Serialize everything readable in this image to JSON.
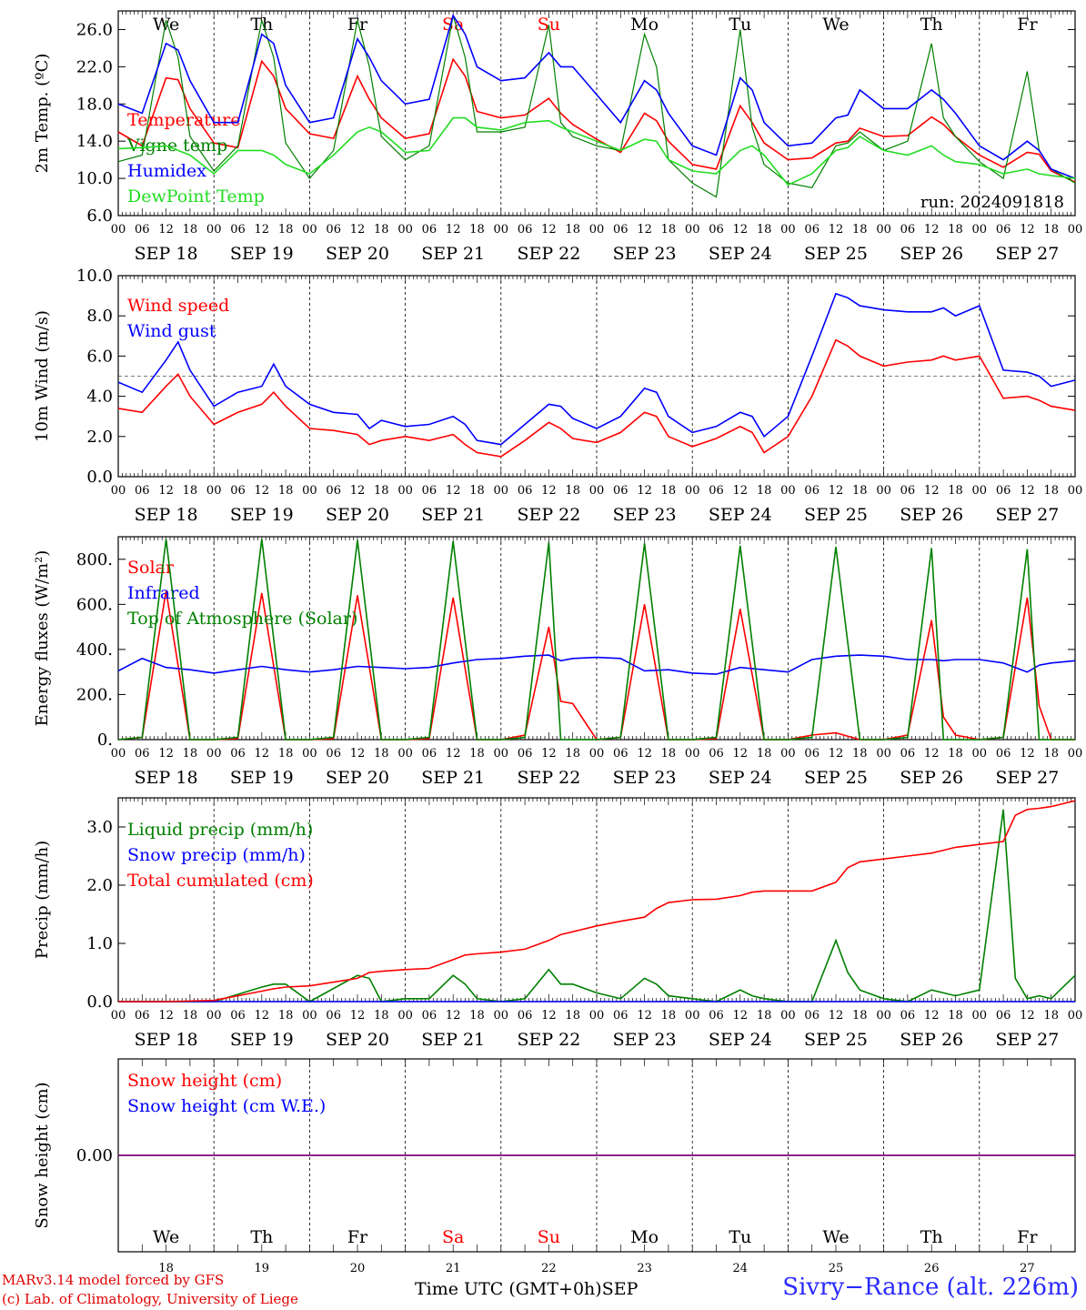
{
  "footer": {
    "credit_model": "MARv3.14 model forced by GFS",
    "credit_lab": "(c) Lab. of Climatology, University of Liege",
    "time_label": "Time UTC (GMT+0h)",
    "month_label": "SEP",
    "station": "Sivry−Rance (alt. 226m)"
  },
  "days": {
    "names": [
      "We",
      "Th",
      "Fr",
      "Sa",
      "Su",
      "Mo",
      "Tu",
      "We",
      "Th",
      "Fr"
    ],
    "weekend_flags": [
      false,
      false,
      false,
      true,
      true,
      false,
      false,
      false,
      false,
      false
    ],
    "dates": [
      "SEP 18",
      "SEP 19",
      "SEP 20",
      "SEP 21",
      "SEP 22",
      "SEP 23",
      "SEP 24",
      "SEP 25",
      "SEP 26",
      "SEP 27"
    ],
    "numbers": [
      "18",
      "19",
      "20",
      "21",
      "22",
      "23",
      "24",
      "25",
      "26",
      "27"
    ],
    "hour_ticks": [
      "00",
      "06",
      "12",
      "18"
    ],
    "last_tick": "00"
  },
  "colors": {
    "red": "#ff0000",
    "blue": "#0000ff",
    "green": "#008000",
    "lightgreen": "#22dd22",
    "purple": "#7f007f",
    "weekend": "#ff0000"
  },
  "chart_data": [
    {
      "type": "line",
      "ylabel": "2m Temp. (ºC)",
      "ylim": [
        6,
        28
      ],
      "yticks": [
        "6.0",
        "10.0",
        "14.0",
        "18.0",
        "22.0",
        "26.0"
      ],
      "run_label": "run: 2024091818",
      "x_hours": [
        0,
        6,
        12,
        15,
        18,
        24,
        30,
        36,
        39,
        42,
        48,
        54,
        60,
        63,
        66,
        72,
        78,
        84,
        87,
        90,
        96,
        102,
        108,
        111,
        114,
        120,
        126,
        132,
        135,
        138,
        144,
        150,
        156,
        159,
        162,
        168,
        174,
        180,
        183,
        186,
        192,
        198,
        204,
        207,
        210,
        216,
        222,
        228,
        231,
        234,
        240
      ],
      "series": [
        {
          "name": "Temperature",
          "color": "red",
          "values": [
            15.0,
            13.5,
            20.8,
            20.6,
            17.5,
            13.8,
            13.3,
            22.6,
            21.0,
            17.5,
            14.8,
            14.3,
            21.0,
            18.5,
            16.5,
            14.3,
            14.8,
            22.8,
            21.0,
            17.2,
            16.5,
            16.8,
            18.6,
            17.0,
            15.8,
            14.2,
            12.8,
            17.0,
            16.2,
            14.0,
            11.5,
            11.0,
            17.8,
            16.0,
            13.8,
            12.0,
            12.2,
            13.8,
            14.0,
            15.4,
            14.5,
            14.6,
            16.6,
            15.8,
            14.5,
            12.5,
            11.2,
            12.8,
            12.6,
            10.8,
            9.6
          ]
        },
        {
          "name": "Vigne temp",
          "color": "green",
          "values": [
            11.8,
            12.5,
            27.0,
            23.0,
            14.5,
            10.8,
            13.5,
            27.0,
            23.0,
            13.8,
            10.0,
            13.0,
            27.0,
            22.0,
            14.5,
            12.0,
            13.5,
            27.5,
            23.0,
            15.0,
            15.0,
            15.5,
            26.5,
            16.0,
            14.5,
            13.5,
            13.0,
            25.5,
            22.0,
            12.0,
            9.5,
            8.0,
            26.0,
            15.5,
            11.5,
            9.5,
            9.0,
            13.5,
            13.8,
            15.0,
            13.0,
            14.0,
            24.5,
            16.5,
            14.5,
            11.8,
            10.0,
            21.5,
            13.0,
            11.0,
            9.5
          ]
        },
        {
          "name": "Humidex",
          "color": "blue",
          "values": [
            18.0,
            17.0,
            24.5,
            23.8,
            20.5,
            16.0,
            16.0,
            25.5,
            24.5,
            20.0,
            16.0,
            16.5,
            25.0,
            23.0,
            20.5,
            18.0,
            18.5,
            27.5,
            25.5,
            22.0,
            20.5,
            20.8,
            23.5,
            22.0,
            22.0,
            19.0,
            16.0,
            20.5,
            19.5,
            17.0,
            13.5,
            12.5,
            20.8,
            19.5,
            16.0,
            13.5,
            13.8,
            16.5,
            16.8,
            19.5,
            17.5,
            17.5,
            19.5,
            18.5,
            17.0,
            13.5,
            12.0,
            14.0,
            13.0,
            11.0,
            10.0
          ]
        },
        {
          "name": "DewPoint Temp",
          "color": "lightgreen",
          "values": [
            13.2,
            13.3,
            13.5,
            13.0,
            12.5,
            10.5,
            13.0,
            13.0,
            12.5,
            11.5,
            10.5,
            12.5,
            15.0,
            15.5,
            15.0,
            12.8,
            13.0,
            16.5,
            16.5,
            15.5,
            15.2,
            16.0,
            16.2,
            15.5,
            15.0,
            14.0,
            13.0,
            14.2,
            14.0,
            12.0,
            10.8,
            10.5,
            13.0,
            13.5,
            12.5,
            9.3,
            10.5,
            13.0,
            13.3,
            14.5,
            13.0,
            12.5,
            13.5,
            12.5,
            11.8,
            11.5,
            10.5,
            11.0,
            10.5,
            10.3,
            10.0
          ]
        }
      ]
    },
    {
      "type": "line",
      "ylabel": "10m Wind (m/s)",
      "ylim": [
        0,
        10
      ],
      "yticks": [
        "0.0",
        "2.0",
        "4.0",
        "6.0",
        "8.0",
        "10.0"
      ],
      "reference_line": 5,
      "x_hours": [
        0,
        6,
        12,
        15,
        18,
        24,
        30,
        36,
        39,
        42,
        48,
        54,
        60,
        63,
        66,
        72,
        78,
        84,
        87,
        90,
        96,
        102,
        108,
        111,
        114,
        120,
        126,
        132,
        135,
        138,
        144,
        150,
        156,
        159,
        162,
        168,
        174,
        180,
        183,
        186,
        192,
        198,
        204,
        207,
        210,
        216,
        222,
        228,
        231,
        234,
        240
      ],
      "series": [
        {
          "name": "Wind speed",
          "color": "red",
          "values": [
            3.4,
            3.2,
            4.5,
            5.1,
            4.0,
            2.6,
            3.2,
            3.6,
            4.2,
            3.5,
            2.4,
            2.3,
            2.1,
            1.6,
            1.8,
            2.0,
            1.8,
            2.1,
            1.6,
            1.2,
            1.0,
            1.8,
            2.7,
            2.4,
            1.9,
            1.7,
            2.2,
            3.2,
            3.0,
            2.0,
            1.5,
            1.9,
            2.5,
            2.2,
            1.2,
            2.0,
            4.0,
            6.8,
            6.5,
            6.0,
            5.5,
            5.7,
            5.8,
            6.0,
            5.8,
            6.0,
            3.9,
            4.0,
            3.8,
            3.5,
            3.3
          ]
        },
        {
          "name": "Wind gust",
          "color": "blue",
          "values": [
            4.7,
            4.2,
            5.8,
            6.7,
            5.3,
            3.5,
            4.2,
            4.5,
            5.6,
            4.5,
            3.6,
            3.2,
            3.1,
            2.4,
            2.8,
            2.5,
            2.6,
            3.0,
            2.6,
            1.8,
            1.6,
            2.6,
            3.6,
            3.5,
            2.9,
            2.4,
            3.0,
            4.4,
            4.2,
            3.0,
            2.2,
            2.5,
            3.2,
            3.0,
            2.0,
            3.0,
            6.0,
            9.1,
            8.9,
            8.5,
            8.3,
            8.2,
            8.2,
            8.4,
            8.0,
            8.5,
            5.3,
            5.2,
            5.0,
            4.5,
            4.8
          ]
        }
      ]
    },
    {
      "type": "line",
      "ylabel": "Energy fluxes (W/m²)",
      "ylim": [
        0,
        900
      ],
      "yticks": [
        "0.",
        "200.",
        "400.",
        "600.",
        "800."
      ],
      "x_hours": [
        0,
        6,
        12,
        18,
        24,
        30,
        36,
        42,
        48,
        54,
        60,
        66,
        72,
        78,
        84,
        90,
        96,
        102,
        108,
        111,
        114,
        120,
        126,
        132,
        138,
        144,
        150,
        156,
        162,
        168,
        174,
        180,
        186,
        192,
        198,
        204,
        207,
        210,
        216,
        222,
        228,
        231,
        234,
        240
      ],
      "series": [
        {
          "name": "Solar",
          "color": "red",
          "values": [
            0,
            10,
            660,
            0,
            0,
            5,
            650,
            0,
            0,
            5,
            640,
            0,
            0,
            5,
            630,
            0,
            0,
            20,
            500,
            170,
            160,
            0,
            10,
            600,
            0,
            0,
            5,
            580,
            0,
            0,
            20,
            30,
            0,
            0,
            20,
            530,
            100,
            20,
            0,
            10,
            630,
            150,
            0,
            0
          ]
        },
        {
          "name": "Infrared",
          "color": "blue",
          "values": [
            305,
            360,
            320,
            310,
            295,
            310,
            325,
            310,
            300,
            310,
            325,
            320,
            315,
            320,
            340,
            355,
            360,
            370,
            375,
            350,
            360,
            365,
            360,
            305,
            310,
            295,
            290,
            320,
            310,
            300,
            355,
            370,
            375,
            370,
            355,
            355,
            350,
            355,
            355,
            340,
            300,
            330,
            340,
            350
          ]
        },
        {
          "name": "Top of Atmosphere (Solar)",
          "color": "green",
          "values": [
            0,
            10,
            890,
            0,
            0,
            10,
            890,
            0,
            0,
            10,
            885,
            0,
            0,
            10,
            880,
            0,
            0,
            10,
            875,
            0,
            0,
            0,
            10,
            870,
            0,
            0,
            10,
            860,
            0,
            0,
            10,
            855,
            0,
            0,
            10,
            850,
            0,
            0,
            0,
            10,
            845,
            0,
            0,
            0
          ]
        }
      ]
    },
    {
      "type": "line",
      "ylabel": "Precip (mm/h)",
      "ylim": [
        0,
        3.5
      ],
      "yticks": [
        "0.0",
        "1.0",
        "2.0",
        "3.0"
      ],
      "x_hours": [
        0,
        12,
        24,
        36,
        39,
        42,
        48,
        60,
        63,
        66,
        72,
        78,
        84,
        87,
        90,
        96,
        102,
        108,
        111,
        114,
        120,
        126,
        132,
        135,
        138,
        144,
        150,
        156,
        159,
        162,
        168,
        174,
        180,
        183,
        186,
        192,
        198,
        204,
        207,
        210,
        216,
        222,
        225,
        228,
        231,
        234,
        240
      ],
      "series": [
        {
          "name": "Liquid precip (mm/h)",
          "color": "green",
          "values": [
            0,
            0,
            0,
            0.25,
            0.3,
            0.3,
            0,
            0.45,
            0.4,
            0,
            0.05,
            0.05,
            0.45,
            0.3,
            0.05,
            0,
            0.05,
            0.55,
            0.3,
            0.3,
            0.15,
            0.05,
            0.4,
            0.3,
            0.1,
            0.05,
            0.0,
            0.2,
            0.1,
            0.05,
            0,
            0.0,
            1.05,
            0.5,
            0.2,
            0.05,
            0.0,
            0.2,
            0.15,
            0.1,
            0.2,
            3.3,
            0.4,
            0.05,
            0.1,
            0.05,
            0.45
          ]
        },
        {
          "name": "Snow precip (mm/h)",
          "color": "blue",
          "values": [
            0,
            0,
            0,
            0,
            0,
            0,
            0,
            0,
            0,
            0,
            0,
            0,
            0,
            0,
            0,
            0,
            0,
            0,
            0,
            0,
            0,
            0,
            0,
            0,
            0,
            0,
            0,
            0,
            0,
            0,
            0,
            0,
            0,
            0,
            0,
            0,
            0,
            0,
            0,
            0,
            0,
            0,
            0,
            0,
            0,
            0,
            0
          ]
        },
        {
          "name": "Total cumulated (cm)",
          "color": "red",
          "values": [
            0,
            0,
            0.02,
            0.18,
            0.22,
            0.25,
            0.27,
            0.4,
            0.5,
            0.52,
            0.55,
            0.57,
            0.72,
            0.8,
            0.82,
            0.85,
            0.9,
            1.05,
            1.15,
            1.2,
            1.3,
            1.38,
            1.45,
            1.6,
            1.7,
            1.75,
            1.76,
            1.82,
            1.88,
            1.9,
            1.9,
            1.9,
            2.05,
            2.3,
            2.4,
            2.45,
            2.5,
            2.55,
            2.6,
            2.65,
            2.7,
            2.75,
            3.2,
            3.3,
            3.32,
            3.35,
            3.45
          ]
        }
      ]
    },
    {
      "type": "line",
      "ylabel": "Snow height (cm)",
      "ylim": [
        -1,
        1
      ],
      "yticks": [
        "0.00"
      ],
      "x_hours": [
        0,
        240
      ],
      "series": [
        {
          "name": "Snow height (cm)",
          "color": "red",
          "values": [
            0,
            0
          ]
        },
        {
          "name": "Snow height (cm W.E.)",
          "color": "blue",
          "values": [
            0,
            0
          ]
        }
      ]
    }
  ]
}
